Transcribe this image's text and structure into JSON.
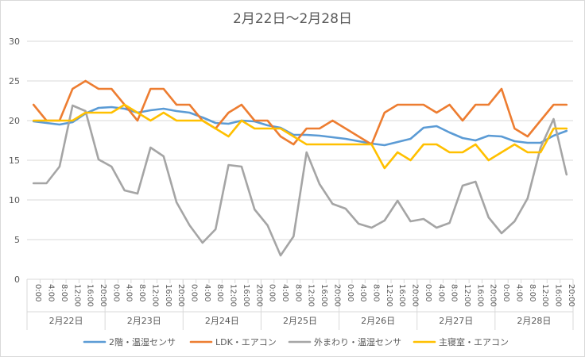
{
  "chart_data": {
    "type": "line",
    "title": "2月22日～2月28日",
    "xlabel": "",
    "ylabel": "",
    "ylim": [
      0,
      30
    ],
    "yticks": [
      0,
      5,
      10,
      15,
      20,
      25,
      30
    ],
    "grid": true,
    "legend_position": "bottom",
    "days": [
      "2月22日",
      "2月23日",
      "2月24日",
      "2月25日",
      "2月26日",
      "2月27日",
      "2月28日"
    ],
    "hour_labels": [
      "0:00",
      "4:00",
      "8:00",
      "12:00",
      "16:00",
      "20:00"
    ],
    "series": [
      {
        "name": "2階・温湿センサ",
        "color": "#5B9BD5",
        "values": [
          19.9,
          19.7,
          19.5,
          19.8,
          20.9,
          21.6,
          21.7,
          21.5,
          21.0,
          21.3,
          21.5,
          21.2,
          21.0,
          20.4,
          19.7,
          19.6,
          20.0,
          19.9,
          19.4,
          19.1,
          18.2,
          18.2,
          18.1,
          17.9,
          17.7,
          17.4,
          17.1,
          16.9,
          17.3,
          17.7,
          19.1,
          19.3,
          18.5,
          17.8,
          17.5,
          18.1,
          18.0,
          17.4,
          17.2,
          17.2,
          18.1,
          18.7
        ]
      },
      {
        "name": "LDK・エアコン",
        "color": "#ED7D31",
        "values": [
          22,
          20,
          20,
          24,
          25,
          24,
          24,
          22,
          20,
          24,
          24,
          22,
          22,
          20,
          19,
          21,
          22,
          20,
          20,
          18,
          17,
          19,
          19,
          20,
          19,
          18,
          17,
          21,
          22,
          22,
          22,
          21,
          22,
          20,
          22,
          22,
          24,
          19,
          18,
          20,
          22,
          22
        ]
      },
      {
        "name": "外まわり・温湿センサ",
        "color": "#A5A5A5",
        "values": [
          12.1,
          12.1,
          14.2,
          21.9,
          21.2,
          15.1,
          14.2,
          11.2,
          10.8,
          16.6,
          15.5,
          9.7,
          6.8,
          4.6,
          6.3,
          14.4,
          14.2,
          8.8,
          6.8,
          3.0,
          5.4,
          16.0,
          12.0,
          9.5,
          8.9,
          7.0,
          6.5,
          7.4,
          9.9,
          7.3,
          7.6,
          6.5,
          7.1,
          11.8,
          12.3,
          7.8,
          5.8,
          7.3,
          10.2,
          16.6,
          20.2,
          13.2
        ]
      },
      {
        "name": "主寝室・エアコン",
        "color": "#FFC000",
        "values": [
          20,
          20,
          20,
          20,
          21,
          21,
          21,
          22,
          21,
          20,
          21,
          20,
          20,
          20,
          19,
          18,
          20,
          19,
          19,
          19,
          18,
          17,
          17,
          17,
          17,
          17,
          17,
          14,
          16,
          15,
          17,
          17,
          16,
          16,
          17,
          15,
          16,
          17,
          16,
          16,
          19,
          19
        ]
      }
    ]
  }
}
